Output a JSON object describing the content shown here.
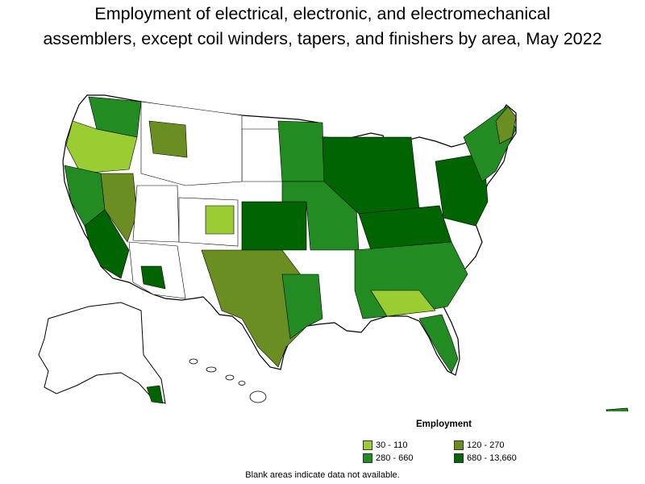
{
  "title_line1": "Employment of electrical, electronic, and electromechanical",
  "title_line2": "assemblers, except coil winders, tapers, and finishers by area, May 2022",
  "legend": {
    "title": "Employment",
    "items": [
      {
        "label": "30 - 110",
        "color": "#9acd32"
      },
      {
        "label": "120 - 270",
        "color": "#6b8e23"
      },
      {
        "label": "280 - 660",
        "color": "#228b22"
      },
      {
        "label": "680 - 13,660",
        "color": "#006400"
      }
    ]
  },
  "note": "Blank areas indicate data not available."
}
